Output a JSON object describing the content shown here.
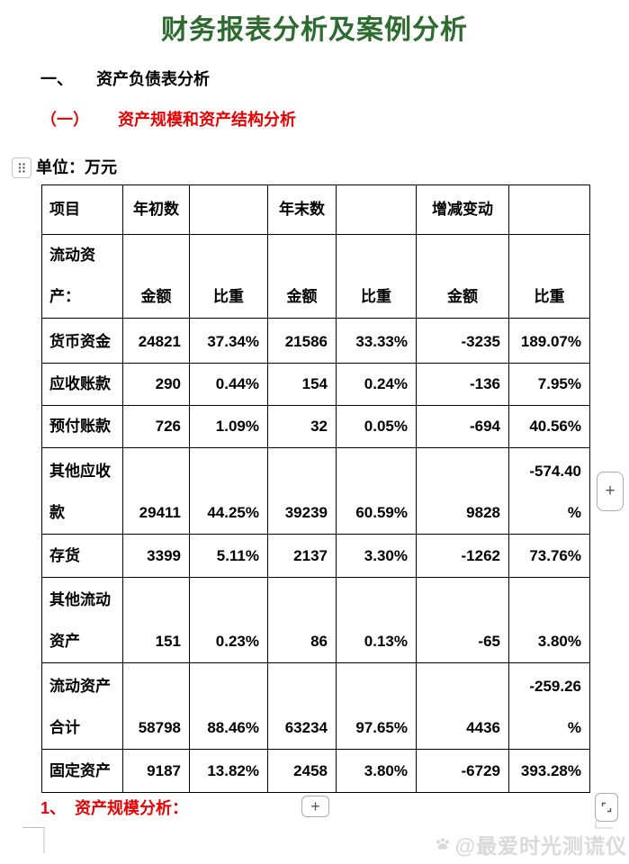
{
  "document": {
    "title": "财务报表分析及案例分析",
    "section_heading": {
      "numeral": "一、",
      "text": "资产负债表分析"
    },
    "subsection_heading": {
      "numeral": "（一）",
      "text": "资产规模和资产结构分析"
    },
    "unit_label": "单位：万元",
    "footnote": {
      "numeral": "1、",
      "text": "资产规模分析："
    }
  },
  "table": {
    "header_row1": [
      "项目",
      "年初数",
      "",
      "年末数",
      "",
      "增减变动",
      ""
    ],
    "header_row2": {
      "label": "流动资\n产：",
      "cols": [
        "金额",
        "比重",
        "金额",
        "比重",
        "金额",
        "比重"
      ]
    },
    "rows": [
      {
        "label": "货币资金",
        "values": [
          "24821",
          "37.34%",
          "21586",
          "33.33%",
          "-3235",
          "189.07%"
        ]
      },
      {
        "label": "应收账款",
        "values": [
          "290",
          "0.44%",
          "154",
          "0.24%",
          "-136",
          "7.95%"
        ]
      },
      {
        "label": "预付账款",
        "values": [
          "726",
          "1.09%",
          "32",
          "0.05%",
          "-694",
          "40.56%"
        ]
      },
      {
        "label": "其他应收\n款",
        "values": [
          "29411",
          "44.25%",
          "39239",
          "60.59%",
          "9828",
          "-574.40\n%"
        ]
      },
      {
        "label": "存货",
        "values": [
          "3399",
          "5.11%",
          "2137",
          "3.30%",
          "-1262",
          "73.76%"
        ]
      },
      {
        "label": "其他流动\n资产",
        "values": [
          "151",
          "0.23%",
          "86",
          "0.13%",
          "-65",
          "3.80%"
        ]
      },
      {
        "label": "流动资产\n合计",
        "values": [
          "58798",
          "88.46%",
          "63234",
          "97.65%",
          "4436",
          "-259.26\n%"
        ]
      },
      {
        "label": "固定资产",
        "values": [
          "9187",
          "13.82%",
          "2458",
          "3.80%",
          "-6729",
          "393.28%"
        ]
      }
    ]
  },
  "controls": {
    "add_column_label": "+",
    "add_row_label": "+"
  },
  "watermark": {
    "text": "@最爱时光测谎仪",
    "logo": "paw-icon"
  },
  "colors": {
    "title_green": "#2d6b2f",
    "heading_red": "#e60000",
    "body_text": "#000000",
    "table_border": "#000000",
    "watermark_gray": "#dadada"
  }
}
